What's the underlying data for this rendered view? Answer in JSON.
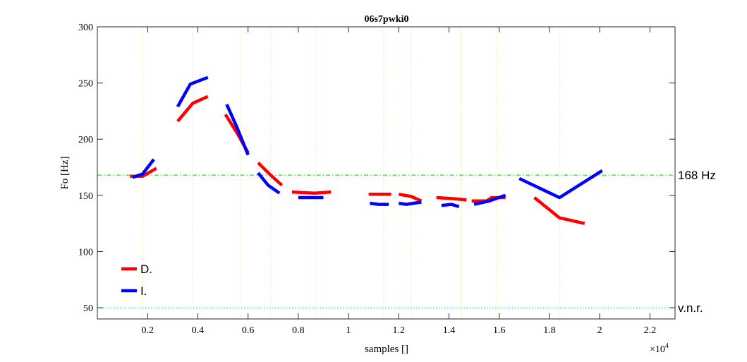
{
  "chart_data": {
    "type": "line",
    "title": "06s7pwki0",
    "xlabel": "samples []",
    "ylabel": "Fo [Hz]",
    "x_exponent_label": "×10",
    "x_exponent_power": "4",
    "xlim": [
      0,
      2.3
    ],
    "ylim": [
      40,
      300
    ],
    "x_ticks": [
      0.2,
      0.4,
      0.6,
      0.8,
      1,
      1.2,
      1.4,
      1.6,
      1.8,
      2,
      2.2
    ],
    "x_tick_labels": [
      "0.2",
      "0.4",
      "0.6",
      "0.8",
      "1",
      "1.2",
      "1.4",
      "1.6",
      "1.8",
      "2",
      "2.2"
    ],
    "y_ticks": [
      50,
      100,
      150,
      200,
      250,
      300
    ],
    "y_tick_labels": [
      "50",
      "100",
      "150",
      "200",
      "250",
      "300"
    ],
    "vertical_markers": [
      0.18,
      0.38,
      0.57,
      0.69,
      0.87,
      1.14,
      1.25,
      1.45,
      1.59,
      1.84
    ],
    "reference_lines": [
      {
        "y": 168,
        "label": "168 Hz",
        "color": "#00cc00"
      },
      {
        "y": 50,
        "label": "v.n.r.",
        "color": "#00cccc"
      }
    ],
    "legend": {
      "position": "bottom-left"
    },
    "series": [
      {
        "name": "D.",
        "color": "#ff0000",
        "segments": [
          [
            [
              0.13,
              167
            ],
            [
              0.18,
              167
            ],
            [
              0.235,
              174
            ]
          ],
          [
            [
              0.32,
              216
            ],
            [
              0.38,
              232
            ],
            [
              0.44,
              238
            ]
          ],
          [
            [
              0.51,
              222
            ],
            [
              0.555,
              206
            ],
            [
              0.6,
              188
            ]
          ],
          [
            [
              0.64,
              179
            ],
            [
              0.69,
              168
            ],
            [
              0.735,
              159
            ]
          ],
          [
            [
              0.775,
              153
            ],
            [
              0.865,
              152
            ],
            [
              0.93,
              153
            ]
          ],
          [
            [
              1.08,
              151
            ],
            [
              1.17,
              151
            ]
          ],
          [
            [
              1.2,
              151
            ],
            [
              1.25,
              149
            ],
            [
              1.29,
              145
            ]
          ],
          [
            [
              1.35,
              148
            ],
            [
              1.42,
              147
            ],
            [
              1.47,
              146
            ]
          ],
          [
            [
              1.49,
              145
            ],
            [
              1.55,
              145
            ],
            [
              1.57,
              148
            ],
            [
              1.625,
              148
            ]
          ],
          [
            [
              1.74,
              148
            ],
            [
              1.84,
              130
            ],
            [
              1.94,
              125
            ]
          ]
        ]
      },
      {
        "name": "I.",
        "color": "#0000ff",
        "segments": [
          [
            [
              0.14,
              166
            ],
            [
              0.18,
              169
            ],
            [
              0.225,
              182
            ]
          ],
          [
            [
              0.32,
              229
            ],
            [
              0.37,
              249
            ],
            [
              0.44,
              255
            ]
          ],
          [
            [
              0.515,
              231
            ],
            [
              0.555,
              211
            ],
            [
              0.6,
              186
            ]
          ],
          [
            [
              0.64,
              170
            ],
            [
              0.68,
              159
            ],
            [
              0.725,
              152
            ]
          ],
          [
            [
              0.8,
              148
            ],
            [
              0.885,
              148
            ],
            [
              0.9,
              148
            ]
          ],
          [
            [
              1.085,
              143
            ],
            [
              1.12,
              142
            ],
            [
              1.16,
              142
            ]
          ],
          [
            [
              1.2,
              143
            ],
            [
              1.23,
              142
            ],
            [
              1.26,
              143
            ],
            [
              1.29,
              144
            ]
          ],
          [
            [
              1.37,
              141
            ],
            [
              1.41,
              142
            ],
            [
              1.44,
              140
            ]
          ],
          [
            [
              1.5,
              142
            ],
            [
              1.56,
              145
            ],
            [
              1.625,
              150
            ]
          ],
          [
            [
              1.68,
              165
            ],
            [
              1.84,
              148
            ],
            [
              2.01,
              172
            ]
          ]
        ]
      }
    ]
  }
}
